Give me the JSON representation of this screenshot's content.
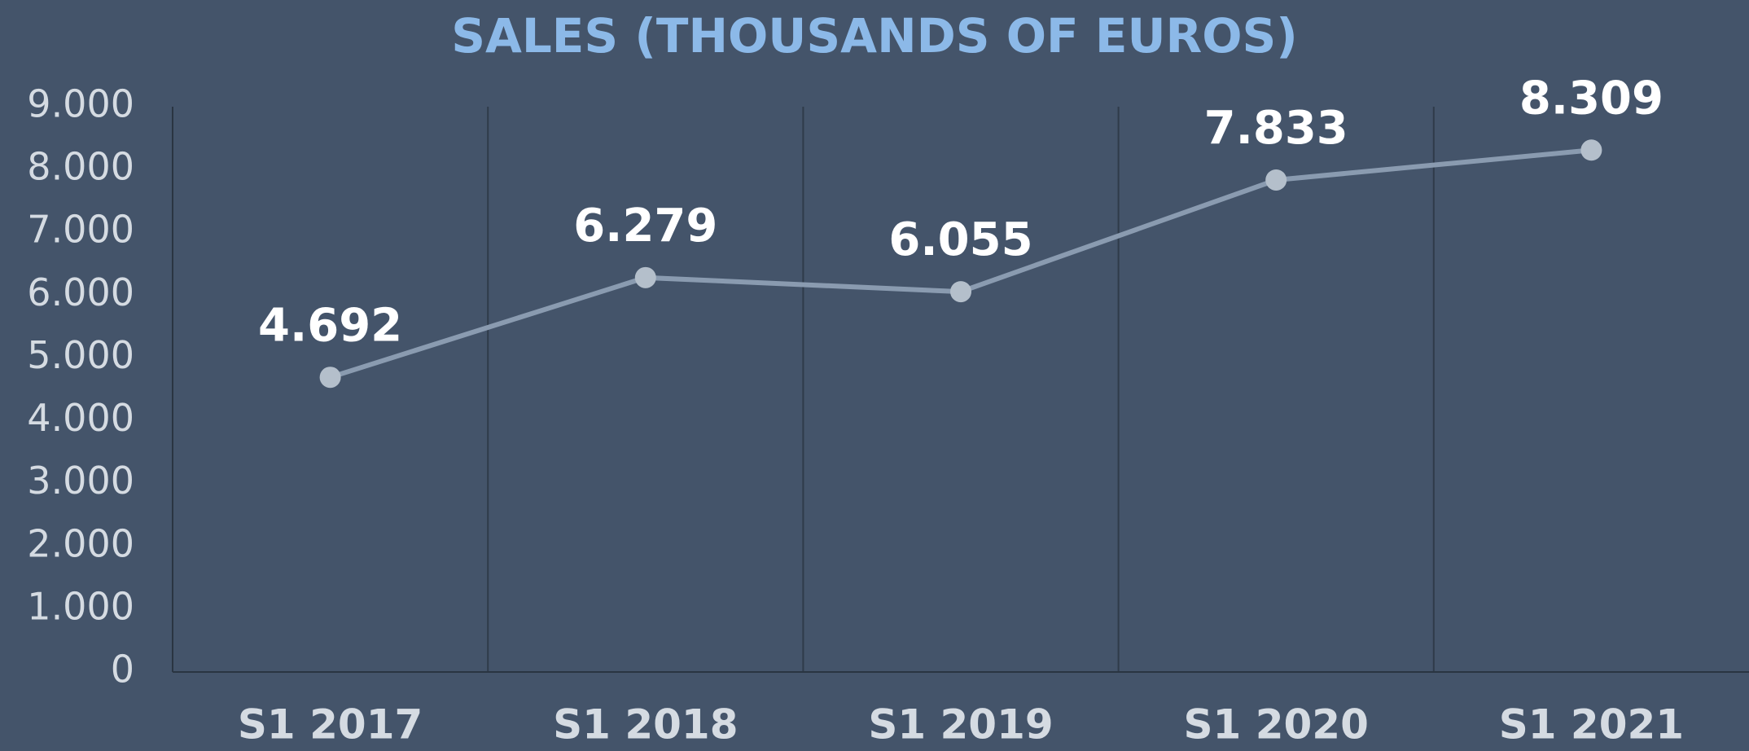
{
  "chart_data": {
    "type": "line",
    "title": "SALES (THOUSANDS OF EUROS)",
    "categories": [
      "S1 2017",
      "S1 2018",
      "S1 2019",
      "S1 2020",
      "S1 2021"
    ],
    "values": [
      4692,
      6279,
      6055,
      7833,
      8309
    ],
    "value_labels": [
      "4.692",
      "6.279",
      "6.055",
      "7.833",
      "8.309"
    ],
    "color": "#8a9bb0",
    "marker_color": "#b4bfcb",
    "ylim": [
      0,
      9000
    ],
    "yticks": [
      0,
      {
        "value": 1000,
        "label": "1.000"
      },
      {
        "value": 2000,
        "label": "2.000"
      },
      {
        "value": 3000,
        "label": "3.000"
      },
      {
        "value": 4000,
        "label": "4.000"
      },
      {
        "value": 5000,
        "label": "5.000"
      },
      {
        "value": 6000,
        "label": "6.000"
      },
      {
        "value": 7000,
        "label": "7.000"
      },
      {
        "value": 8000,
        "label": "8.000"
      },
      {
        "value": 9000,
        "label": "9.000"
      }
    ],
    "grid": false
  }
}
